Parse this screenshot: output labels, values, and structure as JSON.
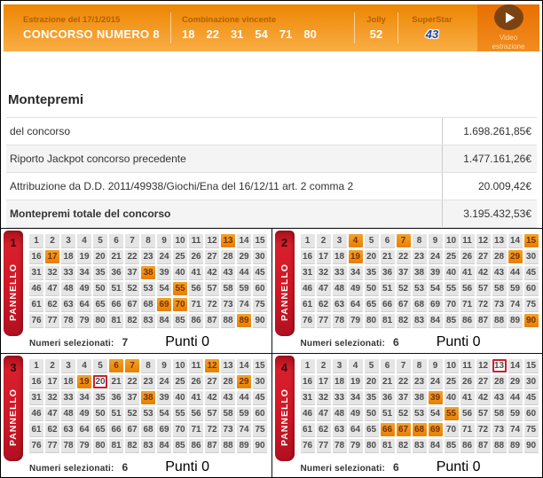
{
  "header": {
    "draw_date_label": "Estrazione del 17/1/2015",
    "title": "CONCORSO NUMERO 8",
    "combination_label": "Combinazione vincente",
    "combination_numbers": [
      "18",
      "22",
      "31",
      "54",
      "71",
      "80"
    ],
    "jolly_label": "Jolly",
    "jolly_number": "52",
    "superstar_label": "SuperStar",
    "superstar_number": "43",
    "video_button_label": "Video estrazione",
    "play_icon": "play-triangle-icon"
  },
  "montepremi": {
    "title": "Montepremi",
    "rows": [
      {
        "label": "del concorso",
        "value": "1.698.261,85€",
        "bold": false
      },
      {
        "label": "Riporto Jackpot concorso precedente",
        "value": "1.477.161,26€",
        "bold": false
      },
      {
        "label": "Attribuzione da D.D. 2011/49938/Giochi/Ena del 16/12/11 art. 2 comma 2",
        "value": "20.009,42€",
        "bold": false
      },
      {
        "label": "Montepremi totale del concorso",
        "value": "3.195.432,53€",
        "bold": true
      }
    ]
  },
  "panels": {
    "ribbon_label": "PANNELLO",
    "numbers_range": {
      "min": 1,
      "max": 90,
      "columns": 15
    },
    "selected_label": "Numeri selezionati:",
    "items": [
      {
        "number": "1",
        "selected_numbers": [
          13,
          17,
          38,
          55,
          69,
          70,
          89
        ],
        "outlined_numbers": [],
        "selected_count": "7",
        "punti_label": "Punti 0"
      },
      {
        "number": "2",
        "selected_numbers": [
          4,
          7,
          15,
          19,
          29,
          90
        ],
        "outlined_numbers": [],
        "selected_count": "6",
        "punti_label": "Punti 0"
      },
      {
        "number": "3",
        "selected_numbers": [
          6,
          7,
          12,
          19,
          29,
          38
        ],
        "outlined_numbers": [
          20
        ],
        "selected_count": "6",
        "punti_label": "Punti 0"
      },
      {
        "number": "4",
        "selected_numbers": [
          39,
          55,
          66,
          67,
          68,
          69
        ],
        "outlined_numbers": [
          13
        ],
        "selected_count": "6",
        "punti_label": "Punti 0"
      }
    ]
  },
  "colors": {
    "header_orange_top": "#ed8502",
    "header_orange_bottom": "#f9ae45",
    "video_block_orange": "#e96f00",
    "play_circle_brown": "#7c4312",
    "ribbon_red": "#cf1624",
    "highlight_orange": "#e77f02",
    "highlight_text": "#7a3000",
    "outline_red": "#cf1f2e",
    "superstar_blue": "#1b3f9e",
    "cell_gray": "#e5e5e5"
  }
}
